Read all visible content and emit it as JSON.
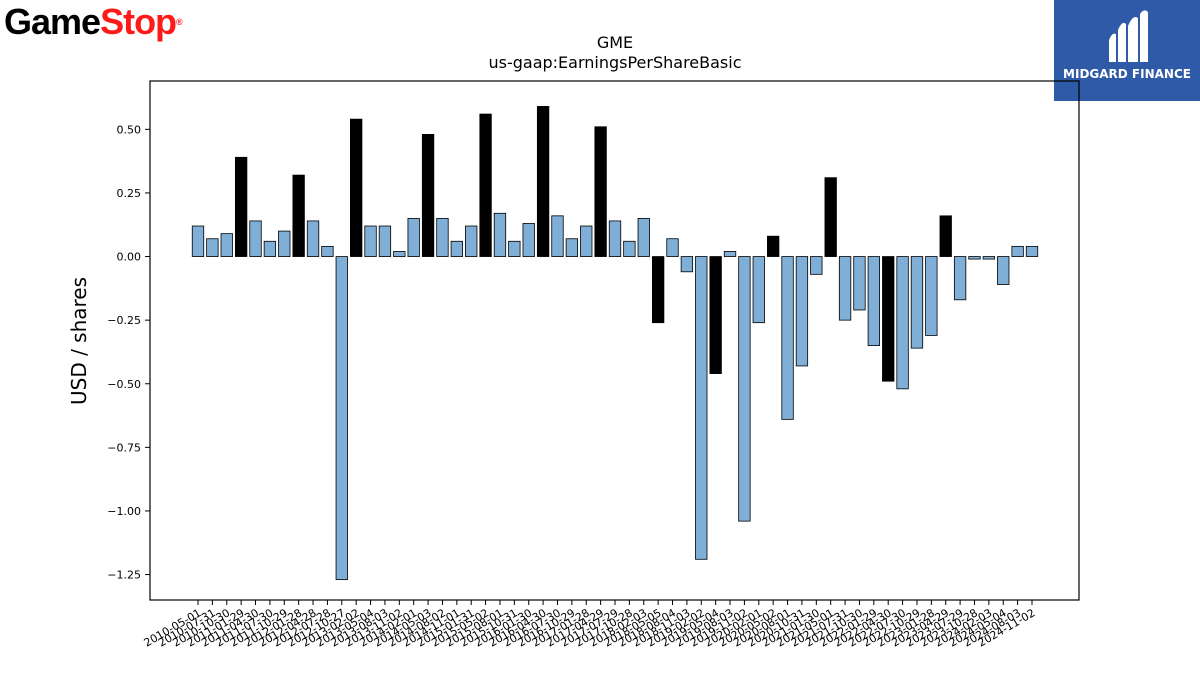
{
  "logos": {
    "left": {
      "part1": "Game",
      "part2": "Stop",
      "mark": "®"
    },
    "right": {
      "brand": "MIDGARD FINANCE",
      "icon": "midgard-finance-logo"
    }
  },
  "colors": {
    "positive_bar": "#7fafd7",
    "highlight_bar": "#000000",
    "axis": "#000000"
  },
  "chart_data": {
    "type": "bar",
    "title": "GME",
    "subtitle": "us-gaap:EarningsPerShareBasic",
    "xlabel": "",
    "ylabel": "USD / shares",
    "ylim": [
      -1.35,
      0.69
    ],
    "yticks": [
      0.5,
      0.25,
      0.0,
      -0.25,
      -0.5,
      -0.75,
      -1.0,
      -1.25
    ],
    "ytick_labels": [
      "0.50",
      "0.25",
      "0.00",
      "−0.25",
      "−0.50",
      "−0.75",
      "−1.00",
      "−1.25"
    ],
    "grid": false,
    "categories": [
      "2010-05-01",
      "2010-07-31",
      "2010-10-30",
      "2011-01-29",
      "2011-04-30",
      "2011-07-30",
      "2011-10-29",
      "2012-01-28",
      "2012-04-28",
      "2012-07-28",
      "2012-10-27",
      "2013-02-02",
      "2013-05-04",
      "2013-08-03",
      "2013-11-02",
      "2014-02-01",
      "2014-05-03",
      "2014-08-02",
      "2014-11-01",
      "2015-01-31",
      "2015-05-02",
      "2015-08-01",
      "2015-10-31",
      "2016-01-30",
      "2016-04-30",
      "2016-07-30",
      "2016-10-29",
      "2017-01-28",
      "2017-04-29",
      "2017-07-29",
      "2017-10-28",
      "2018-02-03",
      "2018-05-05",
      "2018-08-04",
      "2018-11-03",
      "2019-02-02",
      "2019-05-04",
      "2019-08-03",
      "2019-11-02",
      "2020-02-01",
      "2020-05-02",
      "2020-08-01",
      "2020-10-31",
      "2021-01-30",
      "2021-05-01",
      "2021-07-31",
      "2021-10-30",
      "2022-01-29",
      "2022-04-30",
      "2022-07-30",
      "2022-10-29",
      "2023-01-28",
      "2023-04-29",
      "2023-07-29",
      "2023-10-28",
      "2024-02-03",
      "2024-05-04",
      "2024-08-03",
      "2024-11-02"
    ],
    "tick_labels": [
      "2010-05-01",
      "2010-07-31",
      "2010-10-30",
      "2011-01-29",
      "2011-04-30",
      "2011-07-30",
      "2011-10-29",
      "2012-01-28",
      "2012-04-28",
      "2012-07-28",
      "2012-10-27",
      "2013-02-02",
      "2013-05-04",
      "2013-08-03",
      "2013-11-02",
      "2014-02-01",
      "2014-05-03",
      "2014-08-02",
      "2014-11-01",
      "2015-01-31",
      "2015-05-02",
      "2015-08-01",
      "2015-10-31",
      "2016-01-30",
      "2016-04-30",
      "2016-07-30",
      "2016-10-29",
      "2017-01-28",
      "2017-04-29",
      "2017-07-29",
      "2017-10-28",
      "2018-02-03",
      "2018-05-05",
      "2018-08-04",
      "2018-11-03",
      "2019-02-02",
      "2019-05-04",
      "2019-08-03",
      "2019-11-02",
      "2020-02-01",
      "2020-05-02",
      "2020-08-01",
      "2020-10-31",
      "2021-01-30",
      "2021-05-01",
      "2021-07-31",
      "2021-10-30",
      "2022-01-29",
      "2022-04-30",
      "2022-07-30",
      "2022-10-29",
      "2023-01-28",
      "2023-04-29",
      "2023-07-29",
      "2023-10-28",
      "2024-02-03",
      "2024-05-04",
      "2024-08-03",
      "2024-11-02"
    ],
    "values": [
      0.12,
      0.07,
      0.09,
      0.39,
      0.14,
      0.06,
      0.1,
      0.32,
      0.14,
      0.04,
      -1.27,
      0.54,
      0.12,
      0.12,
      0.02,
      0.15,
      0.48,
      0.15,
      0.06,
      0.12,
      0.56,
      0.17,
      0.06,
      0.13,
      0.59,
      0.16,
      0.07,
      0.12,
      0.51,
      0.14,
      0.06,
      0.15,
      -0.26,
      0.07,
      -0.06,
      -1.19,
      -0.46,
      0.02,
      -1.04,
      -0.26,
      0.08,
      -0.64,
      -0.43,
      -0.07,
      0.31,
      -0.25,
      -0.21,
      -0.35,
      -0.49,
      -0.52,
      -0.36,
      -0.31,
      0.16,
      -0.17,
      -0.01,
      -0.01,
      -0.11,
      0.04,
      0.04
    ],
    "highlight_bars": [
      3,
      7,
      11,
      16,
      20,
      24,
      28,
      32,
      36,
      40,
      44,
      48,
      52
    ]
  }
}
